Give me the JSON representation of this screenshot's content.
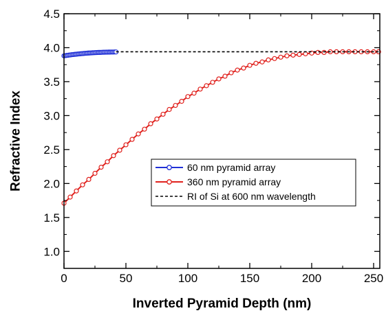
{
  "chart_data": {
    "type": "scatter",
    "xlabel": "Inverted Pyramid Depth (nm)",
    "ylabel": "Refractive Index",
    "xlim": [
      0,
      255
    ],
    "ylim": [
      0.75,
      4.5
    ],
    "x_ticks": [
      0,
      50,
      100,
      150,
      200,
      250
    ],
    "y_ticks": [
      1.0,
      1.5,
      2.0,
      2.5,
      3.0,
      3.5,
      4.0,
      4.5
    ],
    "x_tick_labels": [
      "0",
      "50",
      "100",
      "150",
      "200",
      "250"
    ],
    "y_tick_labels": [
      "1.0",
      "1.5",
      "2.0",
      "2.5",
      "3.0",
      "3.5",
      "4.0",
      "4.5"
    ],
    "grid": false,
    "legend_position": "center-right",
    "series": [
      {
        "name": "60 nm pyramid array",
        "color": "#1f2fd6",
        "marker": "open-circle",
        "line": "solid",
        "x": [
          0,
          1,
          2,
          3,
          4,
          5,
          6,
          7,
          8,
          9,
          10,
          11,
          12,
          13,
          14,
          15,
          16,
          17,
          18,
          19,
          20,
          21,
          22,
          23,
          24,
          25,
          26,
          27,
          28,
          29,
          30,
          31,
          32,
          33,
          34,
          35,
          36,
          37,
          38,
          39,
          40,
          41,
          42
        ],
        "y": [
          3.88,
          3.883,
          3.886,
          3.888,
          3.891,
          3.893,
          3.896,
          3.898,
          3.9,
          3.902,
          3.904,
          3.906,
          3.908,
          3.91,
          3.912,
          3.913,
          3.915,
          3.917,
          3.918,
          3.92,
          3.921,
          3.922,
          3.923,
          3.925,
          3.926,
          3.927,
          3.928,
          3.929,
          3.93,
          3.93,
          3.931,
          3.932,
          3.933,
          3.933,
          3.934,
          3.934,
          3.935,
          3.935,
          3.936,
          3.936,
          3.936,
          3.937,
          3.937
        ]
      },
      {
        "name": "360 nm pyramid array",
        "color": "#e0201c",
        "marker": "open-circle",
        "line": "solid",
        "x": [
          0,
          5,
          10,
          15,
          20,
          25,
          30,
          35,
          40,
          45,
          50,
          55,
          60,
          65,
          70,
          75,
          80,
          85,
          90,
          95,
          100,
          105,
          110,
          115,
          120,
          125,
          130,
          135,
          140,
          145,
          150,
          155,
          160,
          165,
          170,
          175,
          180,
          185,
          190,
          195,
          200,
          205,
          210,
          215,
          220,
          225,
          230,
          235,
          240,
          245,
          250,
          254
        ],
        "y": [
          1.71,
          1.8,
          1.89,
          1.98,
          2.06,
          2.15,
          2.24,
          2.32,
          2.41,
          2.49,
          2.57,
          2.65,
          2.73,
          2.8,
          2.88,
          2.95,
          3.02,
          3.09,
          3.15,
          3.21,
          3.28,
          3.33,
          3.39,
          3.44,
          3.49,
          3.54,
          3.58,
          3.63,
          3.67,
          3.7,
          3.74,
          3.77,
          3.79,
          3.82,
          3.84,
          3.86,
          3.88,
          3.89,
          3.9,
          3.91,
          3.92,
          3.93,
          3.93,
          3.94,
          3.94,
          3.94,
          3.94,
          3.94,
          3.94,
          3.94,
          3.94,
          3.94
        ]
      },
      {
        "name": "RI of Si at 600 nm wavelength",
        "color": "#000000",
        "marker": "none",
        "line": "dashed",
        "x": [
          42,
          254
        ],
        "y": [
          3.94,
          3.94
        ]
      }
    ]
  }
}
